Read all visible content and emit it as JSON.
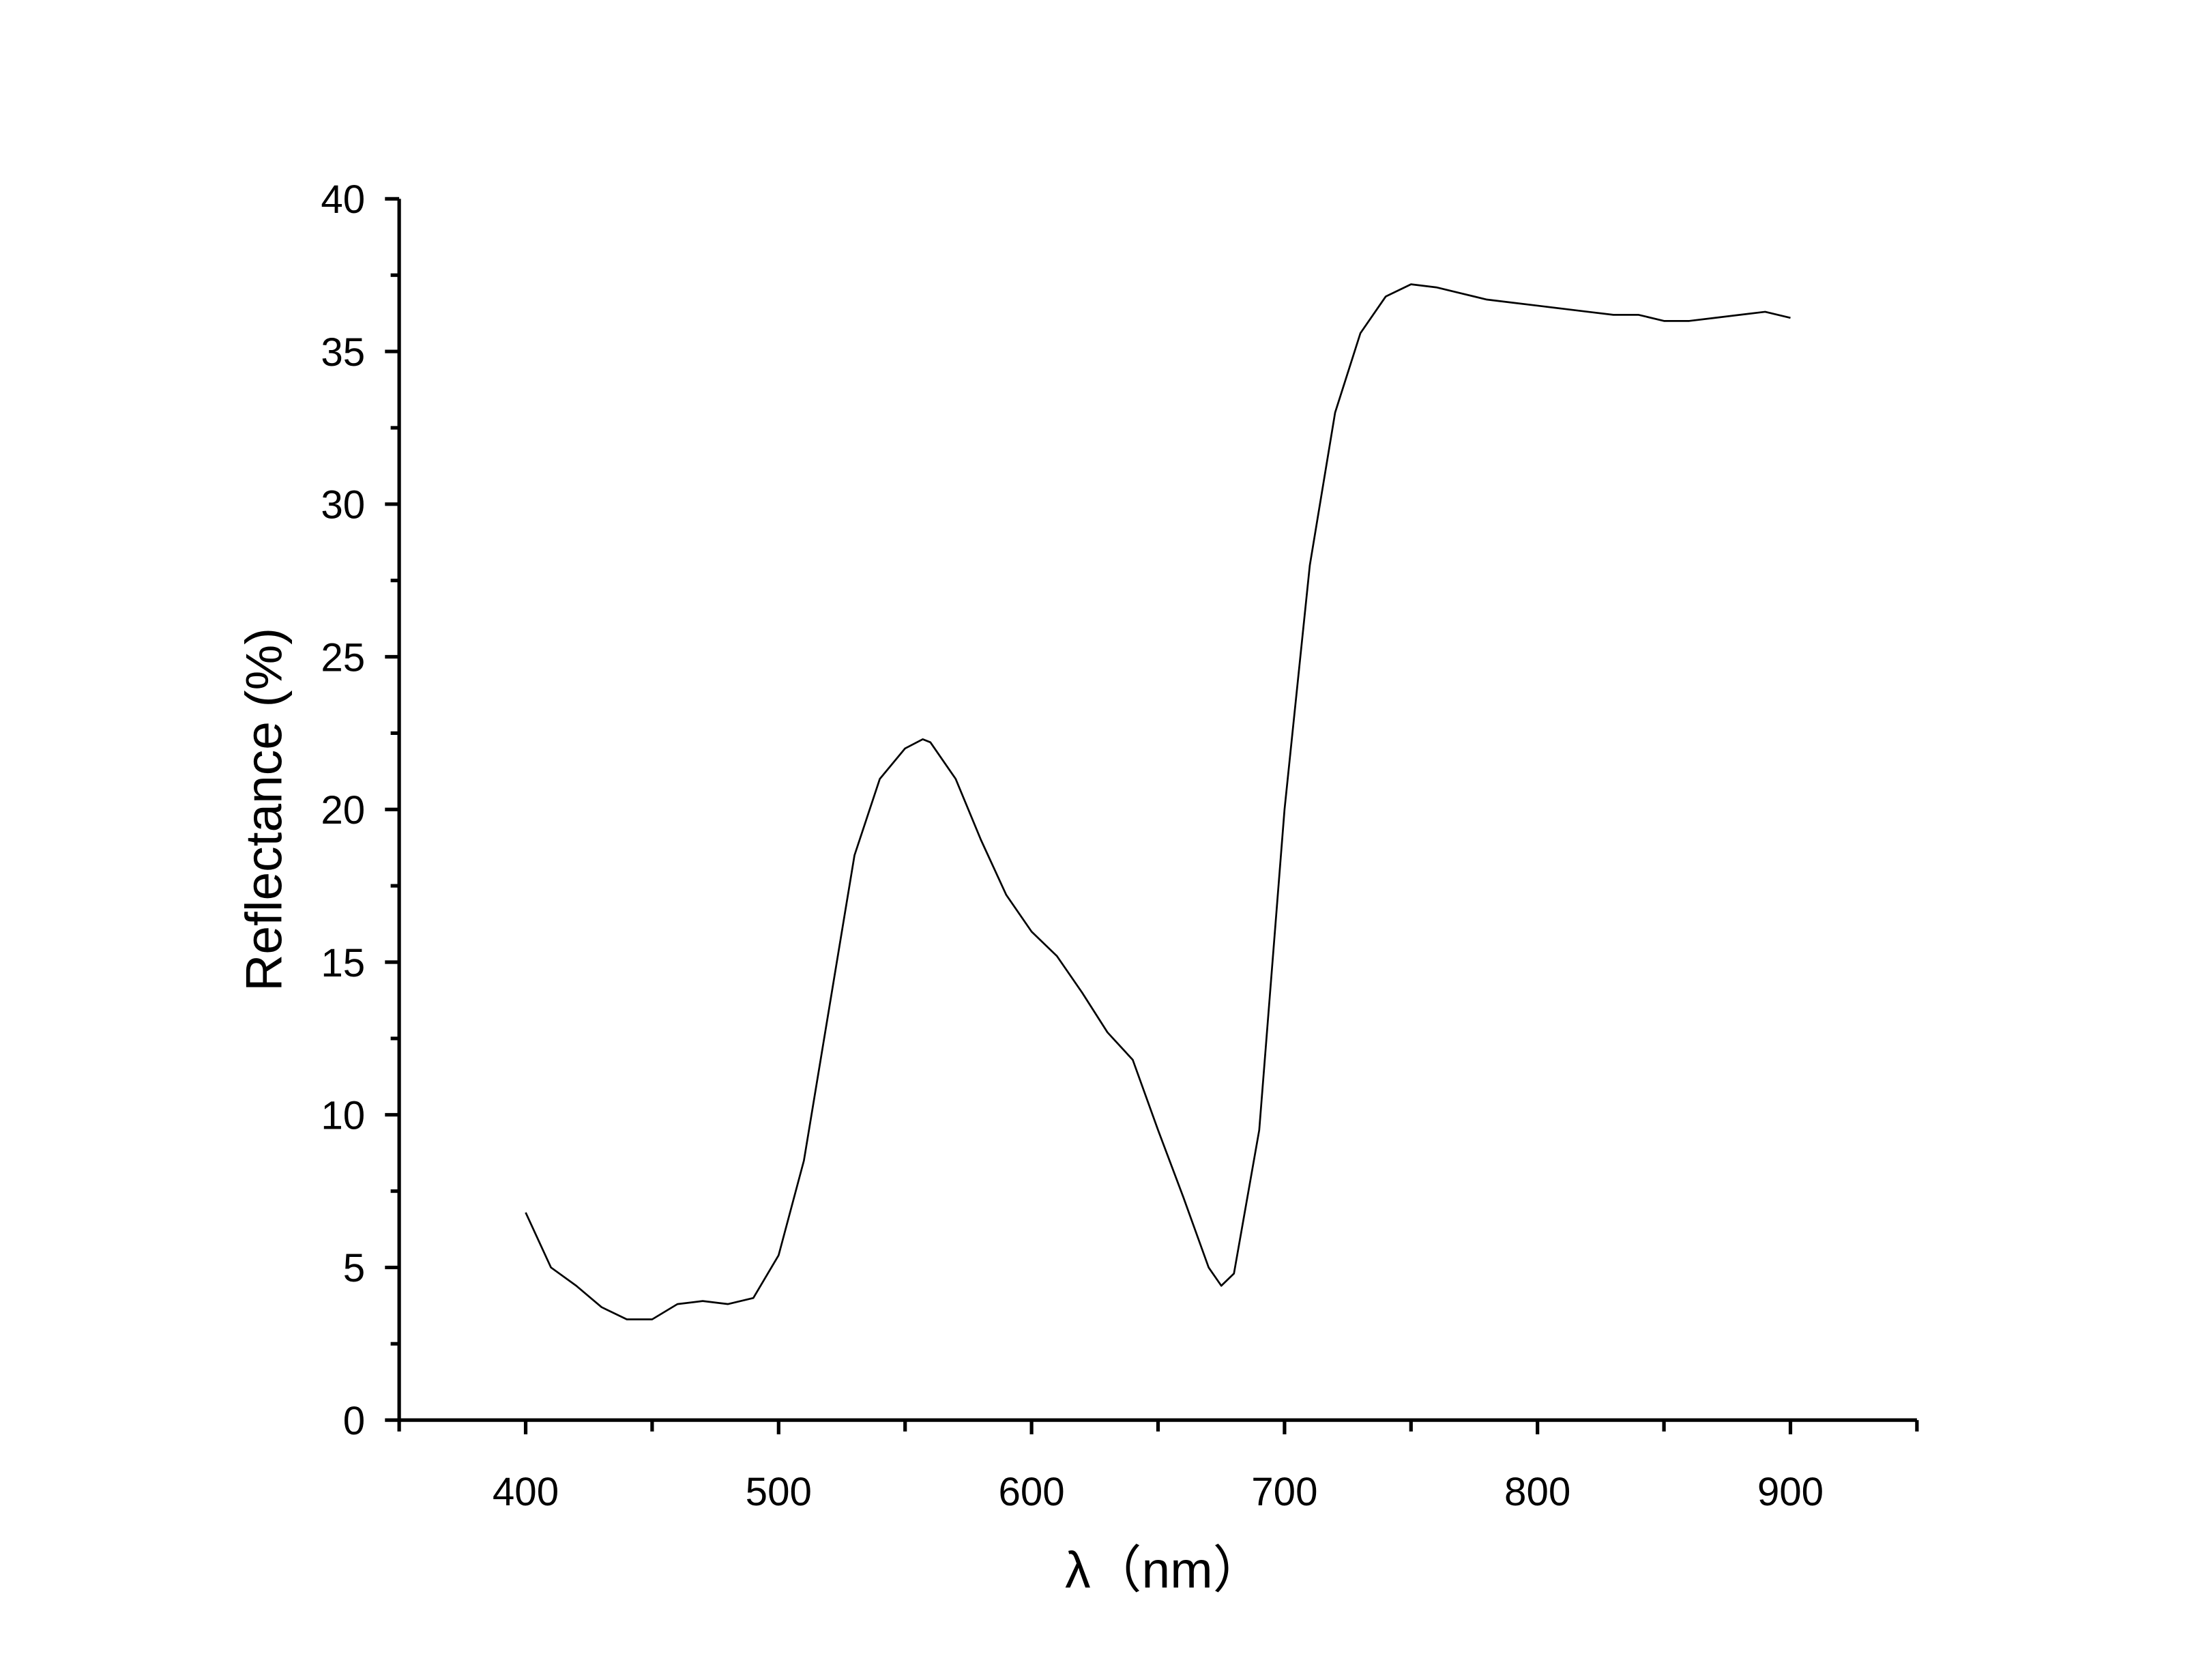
{
  "chart_data": {
    "type": "line",
    "x_label": "λ（nm）",
    "y_label": "Reflectance (%)",
    "x": [
      400,
      410,
      420,
      430,
      440,
      450,
      460,
      470,
      480,
      490,
      500,
      510,
      520,
      530,
      540,
      550,
      557,
      560,
      570,
      580,
      590,
      600,
      610,
      620,
      630,
      640,
      650,
      660,
      670,
      675,
      680,
      690,
      700,
      710,
      720,
      730,
      740,
      750,
      760,
      770,
      780,
      790,
      800,
      810,
      820,
      830,
      840,
      850,
      860,
      870,
      880,
      890,
      900
    ],
    "series": [
      {
        "color": "#000000",
        "values": [
          6.8,
          5.0,
          4.4,
          3.7,
          3.3,
          3.3,
          3.8,
          3.9,
          3.8,
          4.0,
          5.4,
          8.5,
          13.5,
          18.5,
          21.0,
          22.0,
          22.3,
          22.2,
          21.0,
          19.0,
          17.2,
          16.0,
          15.2,
          14.0,
          12.7,
          11.8,
          9.5,
          7.3,
          5.0,
          4.4,
          4.8,
          9.5,
          20.0,
          28.0,
          33.0,
          35.6,
          36.8,
          37.2,
          37.1,
          36.9,
          36.7,
          36.6,
          36.5,
          36.4,
          36.3,
          36.2,
          36.2,
          36.0,
          36.0,
          36.1,
          36.2,
          36.3,
          36.1
        ]
      }
    ],
    "xlim": [
      350,
      950
    ],
    "ylim": [
      0,
      40
    ],
    "xticks": [
      400,
      500,
      600,
      700,
      800,
      900
    ],
    "yticks": [
      0,
      5,
      10,
      15,
      20,
      25,
      30,
      35,
      40
    ],
    "xminorticks": [
      350,
      450,
      550,
      650,
      750,
      850,
      950
    ],
    "yminorticks": [
      2.5,
      7.5,
      12.5,
      17.5,
      22.5,
      27.5,
      32.5,
      37.5
    ]
  }
}
